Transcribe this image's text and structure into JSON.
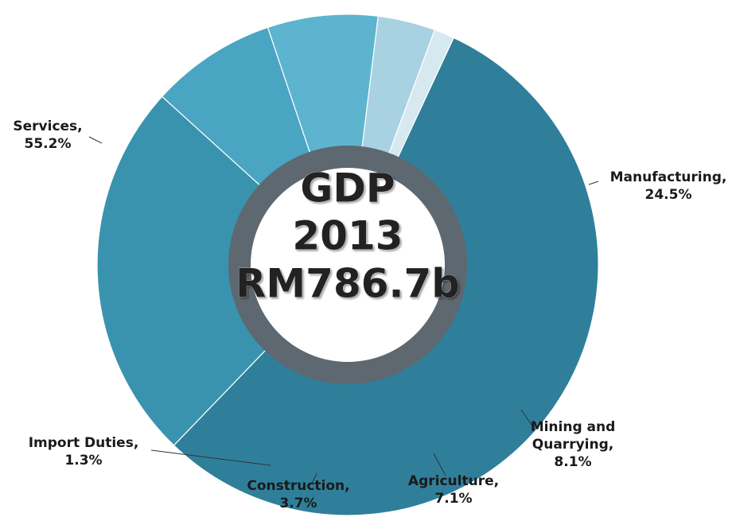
{
  "chart_data": {
    "type": "donut",
    "center_text": [
      "GDP",
      "2013",
      "RM786.7b"
    ],
    "categories": [
      "Services,",
      "Manufacturing,",
      "Mining and Quarrying,",
      "Agriculture,",
      "Construction,",
      "Import Duties,"
    ],
    "values": [
      55.2,
      24.5,
      8.1,
      7.1,
      3.7,
      1.3
    ],
    "value_labels": [
      "55.2%",
      "24.5%",
      "8.1%",
      "7.1%",
      "3.7%",
      "1.3%"
    ],
    "colors": [
      "#2f7f9b",
      "#3a93ae",
      "#4aa5c2",
      "#5cb4cf",
      "#a8d2e2",
      "#d6e9f0"
    ]
  }
}
